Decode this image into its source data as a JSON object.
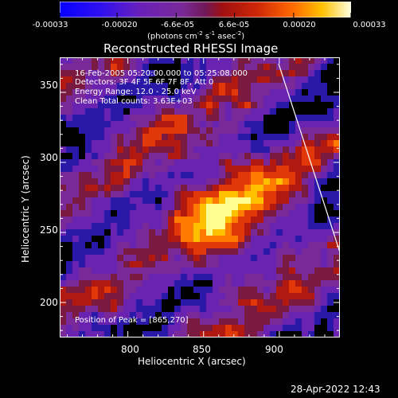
{
  "colorbar": {
    "ticks": [
      "-0.00033",
      "-0.00020",
      "-6.6e-05",
      "6.6e-05",
      "0.00020",
      "0.00033"
    ],
    "tick_values": [
      -0.00033,
      -0.0002,
      -6.6e-05,
      6.6e-05,
      0.0002,
      0.00033
    ],
    "units_label": "(photons cm",
    "units_sup1": "-2",
    "units_mid": " s",
    "units_sup2": "-1",
    "units_mid2": " asec",
    "units_sup3": "-2",
    "units_end": ")",
    "colors": [
      "#0a00ff",
      "#5a18c8",
      "#7a2aa0",
      "#a01818",
      "#e04010",
      "#ffa000",
      "#ffffc8"
    ]
  },
  "plot": {
    "title": "Reconstructed RHESSI Image",
    "info_lines": [
      "16-Feb-2005 05:20:00.000 to 05:25:08.000",
      "Detectors: 3F 4F 5F 6F 7F 8F, Att 0",
      "Energy Range: 12.0 - 25.0 keV",
      "Clean    Total counts: 3.63E+03"
    ],
    "peak_label": "Position of Peak = [865,270]",
    "limb_color": "#ffffff"
  },
  "chart_data": {
    "type": "heatmap",
    "title": "Reconstructed RHESSI Image",
    "xlabel": "Heliocentric X (arcsec)",
    "ylabel": "Heliocentric Y (arcsec)",
    "xlim": [
      755,
      940
    ],
    "ylim": [
      175,
      375
    ],
    "x_ticks": [
      800,
      850,
      900
    ],
    "y_ticks": [
      200,
      250,
      300,
      350
    ],
    "peak": [
      865,
      270
    ],
    "value_range": [
      -0.00033,
      0.00033
    ]
  },
  "footer": {
    "timestamp": "28-Apr-2022 12:43"
  }
}
